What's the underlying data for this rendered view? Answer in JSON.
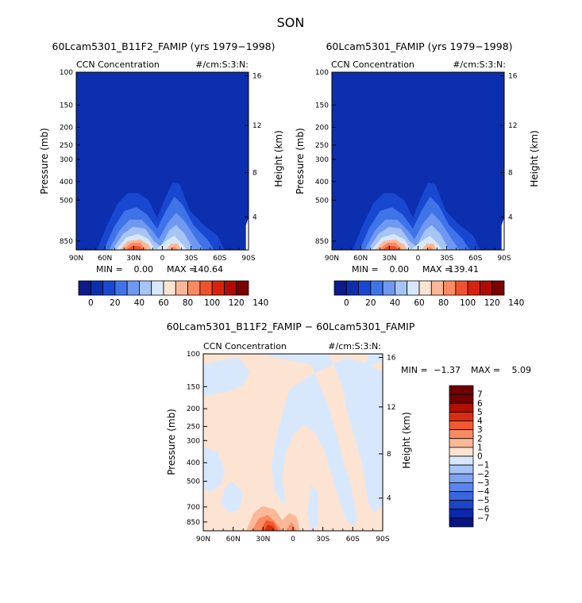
{
  "figure_title": "SON",
  "chart_data": [
    {
      "type": "heatmap",
      "title": "60Lcam5301_B11F2_FAMIP (yrs 1979−1998)",
      "variable": "CCN Concentration",
      "units": "#/cm:S:3:N:",
      "xlabel": "",
      "ylabel": "Pressure (mb)",
      "ylabel_right": "Height (km)",
      "x_ticks": [
        "90N",
        "60N",
        "30N",
        "0",
        "30S",
        "60S",
        "90S"
      ],
      "y_ticks": [
        "100",
        "150",
        "200",
        "250",
        "300",
        "400",
        "500",
        "850"
      ],
      "y_ticks_right": [
        "16",
        "12",
        "8",
        "4"
      ],
      "stats": {
        "min_label": "MIN =",
        "min": "0.00",
        "max_label": "MAX =",
        "max": "140.64"
      },
      "colorbar": {
        "levels": [
          "0",
          "20",
          "40",
          "60",
          "80",
          "100",
          "120",
          "140"
        ]
      }
    },
    {
      "type": "heatmap",
      "title": "60Lcam5301_FAMIP (yrs 1979−1998)",
      "variable": "CCN Concentration",
      "units": "#/cm:S:3:N:",
      "xlabel": "",
      "ylabel": "Pressure (mb)",
      "ylabel_right": "Height (km)",
      "x_ticks": [
        "90N",
        "60N",
        "30N",
        "0",
        "30S",
        "60S",
        "90S"
      ],
      "y_ticks": [
        "100",
        "150",
        "200",
        "250",
        "300",
        "400",
        "500",
        "850"
      ],
      "y_ticks_right": [
        "16",
        "12",
        "8",
        "4"
      ],
      "stats": {
        "min_label": "MIN =",
        "min": "0.00",
        "max_label": "MAX =",
        "max": "139.41"
      },
      "colorbar": {
        "levels": [
          "0",
          "20",
          "40",
          "60",
          "80",
          "100",
          "120",
          "140"
        ]
      }
    },
    {
      "type": "heatmap",
      "title": "60Lcam5301_B11F2_FAMIP − 60Lcam5301_FAMIP",
      "variable": "CCN Concentration",
      "units": "#/cm:S:3:N:",
      "xlabel": "",
      "ylabel": "Pressure (mb)",
      "ylabel_right": "Height (km)",
      "x_ticks": [
        "90N",
        "60N",
        "30N",
        "0",
        "30S",
        "60S",
        "90S"
      ],
      "y_ticks": [
        "100",
        "150",
        "200",
        "250",
        "300",
        "400",
        "500",
        "700",
        "850"
      ],
      "y_ticks_right": [
        "16",
        "12",
        "8",
        "4"
      ],
      "stats": {
        "min_label": "MIN =",
        "min": "−1.37",
        "max_label": "MAX =",
        "max": "5.09"
      },
      "colorbar": {
        "levels": [
          "7",
          "6",
          "5",
          "4",
          "3",
          "2",
          "1",
          "0",
          "−1",
          "−2",
          "−3",
          "−4",
          "−5",
          "−6",
          "−7"
        ]
      }
    }
  ],
  "colors": {
    "seq": [
      "#0d1a8c",
      "#0c2fb0",
      "#1848d0",
      "#3f73e8",
      "#6f98f0",
      "#a6c4f6",
      "#d8e8fc",
      "#fde3d2",
      "#fbb899",
      "#f98a62",
      "#f0512e",
      "#d8220c",
      "#ae0c04",
      "#7a0000"
    ],
    "diff": [
      "#700000",
      "#b01000",
      "#dc2c10",
      "#f05a30",
      "#f98a62",
      "#fbb899",
      "#fde3d2",
      "#d8e8fc",
      "#a6c4f6",
      "#7ea4f0",
      "#5a86ea",
      "#3866dc",
      "#1c44c8",
      "#0c28a8",
      "#081480"
    ]
  }
}
